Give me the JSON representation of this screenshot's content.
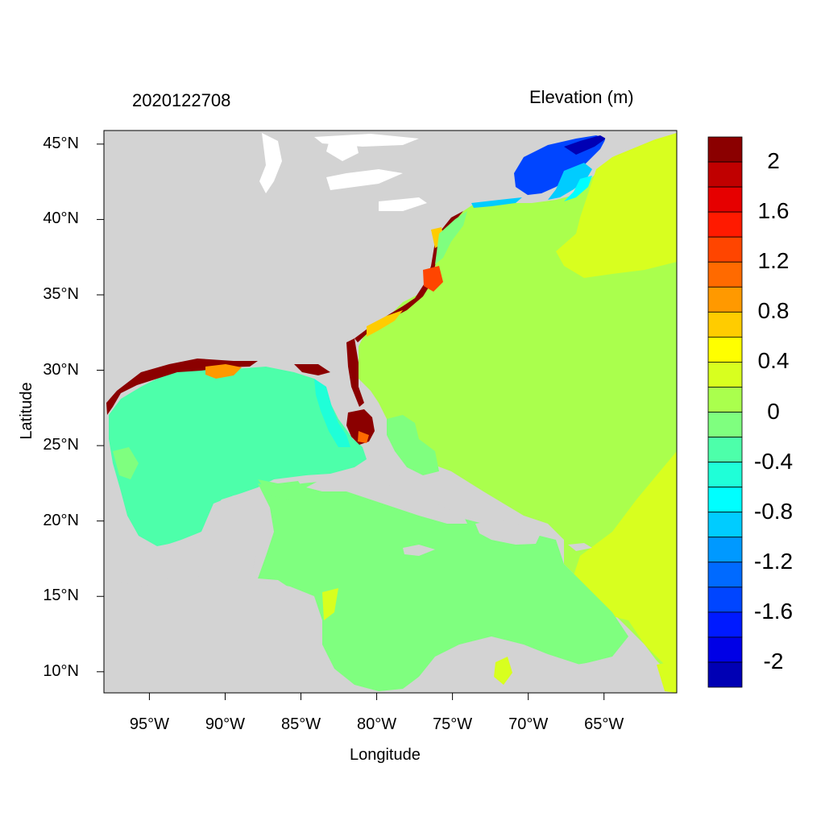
{
  "header": {
    "timestamp": "2020122708",
    "variable_title": "Elevation (m)"
  },
  "map": {
    "xlabel": "Longitude",
    "ylabel": "Latitude",
    "lon_range": [
      -98,
      -60.2
    ],
    "lat_range": [
      8.6,
      45.9
    ],
    "lon_ticks": [
      {
        "value": -95,
        "label": "95°W"
      },
      {
        "value": -90,
        "label": "90°W"
      },
      {
        "value": -85,
        "label": "85°W"
      },
      {
        "value": -80,
        "label": "80°W"
      },
      {
        "value": -75,
        "label": "75°W"
      },
      {
        "value": -70,
        "label": "70°W"
      },
      {
        "value": -65,
        "label": "65°W"
      }
    ],
    "lat_ticks": [
      {
        "value": 45,
        "label": "45°N"
      },
      {
        "value": 40,
        "label": "40°N"
      },
      {
        "value": 35,
        "label": "35°N"
      },
      {
        "value": 30,
        "label": "30°N"
      },
      {
        "value": 25,
        "label": "25°N"
      },
      {
        "value": 20,
        "label": "20°N"
      },
      {
        "value": 15,
        "label": "15°N"
      },
      {
        "value": 10,
        "label": "10°N"
      }
    ],
    "land_color": "#d3d3d3"
  },
  "colorbar": {
    "labels": [
      "2",
      "1.6",
      "1.2",
      "0.8",
      "0.4",
      "0",
      "-0.4",
      "-0.8",
      "-1.2",
      "-1.6",
      "-2"
    ],
    "colors": [
      "#8b0000",
      "#c00000",
      "#e60000",
      "#ff1a00",
      "#ff4500",
      "#ff6a00",
      "#ff9900",
      "#ffcc00",
      "#ffff00",
      "#d8ff1f",
      "#aaff4d",
      "#7fff7f",
      "#4dffaa",
      "#1fffd8",
      "#00ffff",
      "#00ccff",
      "#0099ff",
      "#006aff",
      "#0045ff",
      "#001aff",
      "#0000e6",
      "#0000b4"
    ]
  }
}
